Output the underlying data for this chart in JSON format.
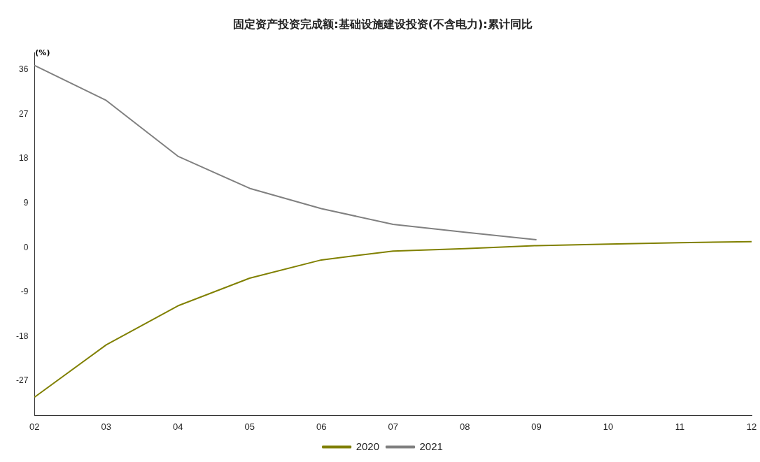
{
  "chart_data": {
    "type": "line",
    "title": "固定资产投资完成额:基础设施建设投资(不含电力):累计同比",
    "ylabel": "(%)",
    "categories": [
      "02",
      "03",
      "04",
      "05",
      "06",
      "07",
      "08",
      "09",
      "10",
      "11",
      "12"
    ],
    "series": [
      {
        "name": "2020",
        "color": "#808000",
        "values": [
          -30.3,
          -19.7,
          -11.8,
          -6.2,
          -2.5,
          -0.7,
          -0.2,
          0.4,
          0.7,
          1.0,
          1.2
        ]
      },
      {
        "name": "2021",
        "color": "#808080",
        "values": [
          36.9,
          29.8,
          18.5,
          12.0,
          7.9,
          4.7,
          3.1,
          1.6,
          null,
          null,
          null
        ]
      }
    ],
    "ylim": [
      -34,
      39.5
    ],
    "yticks": [
      -27,
      -18,
      -9,
      0,
      9,
      18,
      27,
      36
    ],
    "grid": false,
    "legend": "bottom",
    "marker": "none",
    "line_style": "solid"
  }
}
